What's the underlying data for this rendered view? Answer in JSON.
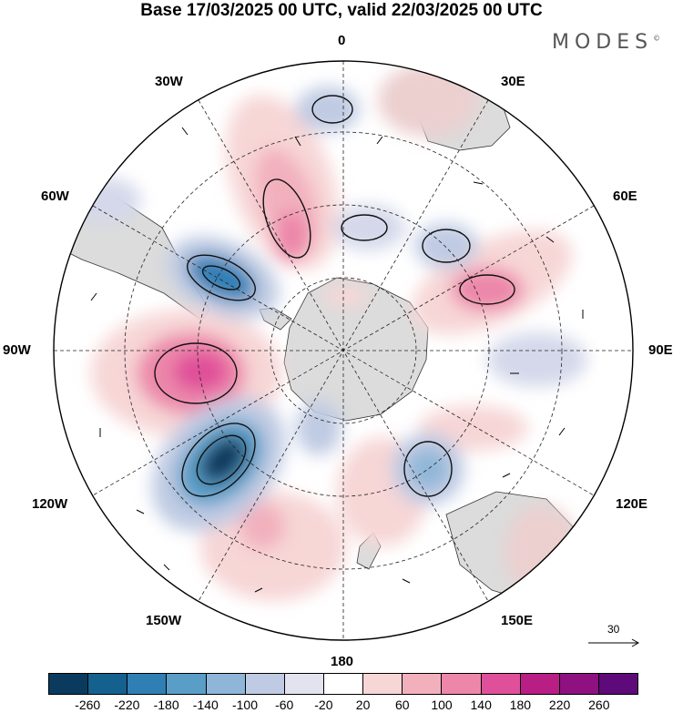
{
  "title": "Base 17/03/2025 00 UTC, valid 22/03/2025 00 UTC",
  "brand": "MODES",
  "brand_mark": "©",
  "longitude_labels": {
    "top": "0",
    "bottom": "180",
    "left": "90W",
    "right": "90E",
    "w30": "30W",
    "w60": "60W",
    "w120": "120W",
    "w150": "150W",
    "e30": "30E",
    "e60": "60E",
    "e120": "120E",
    "e150": "150E"
  },
  "reference_vector": "30",
  "colorbar": {
    "colors": [
      "#0a3b5e",
      "#14618f",
      "#2f7fb5",
      "#5a9ec8",
      "#8fb6d8",
      "#bfcbe3",
      "#e3e3f0",
      "#ffffff",
      "#f7d6d6",
      "#f2b0bd",
      "#ec87aa",
      "#e0509a",
      "#b81e84",
      "#8e1081",
      "#5e0a7a"
    ],
    "ticks": [
      "-260",
      "-220",
      "-180",
      "-140",
      "-100",
      "-60",
      "-20",
      "20",
      "60",
      "100",
      "140",
      "180",
      "220",
      "260"
    ]
  },
  "map_data": {
    "projection": "south polar stereographic",
    "anomaly_centers": [
      {
        "sign": "negative",
        "lon": "120W",
        "lat": "55S",
        "strength": -250
      },
      {
        "sign": "negative",
        "lon": "60W",
        "lat": "55S",
        "strength": -180
      },
      {
        "sign": "negative",
        "lon": "140E",
        "lat": "50S",
        "strength": -120
      },
      {
        "sign": "negative",
        "lon": "40E",
        "lat": "50S",
        "strength": -80
      },
      {
        "sign": "positive",
        "lon": "90W",
        "lat": "50S",
        "strength": 180
      },
      {
        "sign": "positive",
        "lon": "30W",
        "lat": "50S",
        "strength": 140
      },
      {
        "sign": "positive",
        "lon": "60E",
        "lat": "50S",
        "strength": 120
      },
      {
        "sign": "positive",
        "lon": "160W",
        "lat": "45S",
        "strength": 80
      }
    ]
  }
}
